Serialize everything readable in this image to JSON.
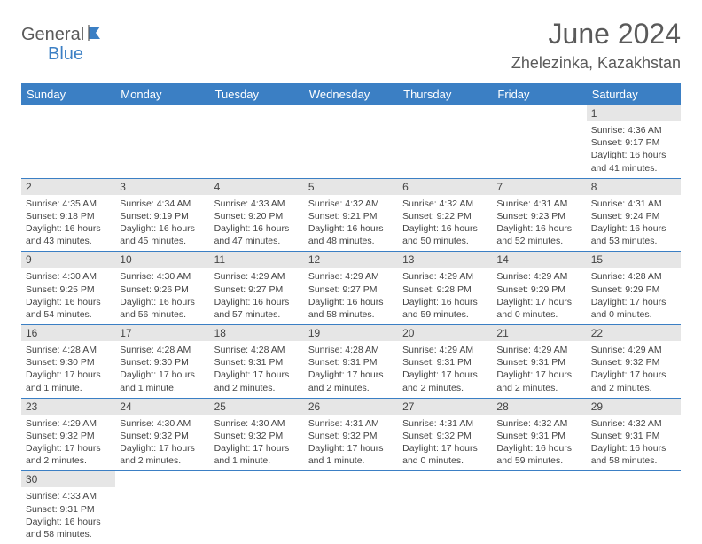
{
  "logo": {
    "part1": "General",
    "part2": "Blue"
  },
  "title": "June 2024",
  "location": "Zhelezinka, Kazakhstan",
  "colors": {
    "header_bg": "#3b7fc4",
    "header_text": "#ffffff",
    "daynum_bg": "#e6e6e6",
    "border": "#3b7fc4",
    "text": "#444444",
    "title_text": "#5a5a5a"
  },
  "weekdays": [
    "Sunday",
    "Monday",
    "Tuesday",
    "Wednesday",
    "Thursday",
    "Friday",
    "Saturday"
  ],
  "weeks": [
    [
      null,
      null,
      null,
      null,
      null,
      null,
      {
        "n": "1",
        "sr": "4:36 AM",
        "ss": "9:17 PM",
        "dl": "16 hours and 41 minutes."
      }
    ],
    [
      {
        "n": "2",
        "sr": "4:35 AM",
        "ss": "9:18 PM",
        "dl": "16 hours and 43 minutes."
      },
      {
        "n": "3",
        "sr": "4:34 AM",
        "ss": "9:19 PM",
        "dl": "16 hours and 45 minutes."
      },
      {
        "n": "4",
        "sr": "4:33 AM",
        "ss": "9:20 PM",
        "dl": "16 hours and 47 minutes."
      },
      {
        "n": "5",
        "sr": "4:32 AM",
        "ss": "9:21 PM",
        "dl": "16 hours and 48 minutes."
      },
      {
        "n": "6",
        "sr": "4:32 AM",
        "ss": "9:22 PM",
        "dl": "16 hours and 50 minutes."
      },
      {
        "n": "7",
        "sr": "4:31 AM",
        "ss": "9:23 PM",
        "dl": "16 hours and 52 minutes."
      },
      {
        "n": "8",
        "sr": "4:31 AM",
        "ss": "9:24 PM",
        "dl": "16 hours and 53 minutes."
      }
    ],
    [
      {
        "n": "9",
        "sr": "4:30 AM",
        "ss": "9:25 PM",
        "dl": "16 hours and 54 minutes."
      },
      {
        "n": "10",
        "sr": "4:30 AM",
        "ss": "9:26 PM",
        "dl": "16 hours and 56 minutes."
      },
      {
        "n": "11",
        "sr": "4:29 AM",
        "ss": "9:27 PM",
        "dl": "16 hours and 57 minutes."
      },
      {
        "n": "12",
        "sr": "4:29 AM",
        "ss": "9:27 PM",
        "dl": "16 hours and 58 minutes."
      },
      {
        "n": "13",
        "sr": "4:29 AM",
        "ss": "9:28 PM",
        "dl": "16 hours and 59 minutes."
      },
      {
        "n": "14",
        "sr": "4:29 AM",
        "ss": "9:29 PM",
        "dl": "17 hours and 0 minutes."
      },
      {
        "n": "15",
        "sr": "4:28 AM",
        "ss": "9:29 PM",
        "dl": "17 hours and 0 minutes."
      }
    ],
    [
      {
        "n": "16",
        "sr": "4:28 AM",
        "ss": "9:30 PM",
        "dl": "17 hours and 1 minute."
      },
      {
        "n": "17",
        "sr": "4:28 AM",
        "ss": "9:30 PM",
        "dl": "17 hours and 1 minute."
      },
      {
        "n": "18",
        "sr": "4:28 AM",
        "ss": "9:31 PM",
        "dl": "17 hours and 2 minutes."
      },
      {
        "n": "19",
        "sr": "4:28 AM",
        "ss": "9:31 PM",
        "dl": "17 hours and 2 minutes."
      },
      {
        "n": "20",
        "sr": "4:29 AM",
        "ss": "9:31 PM",
        "dl": "17 hours and 2 minutes."
      },
      {
        "n": "21",
        "sr": "4:29 AM",
        "ss": "9:31 PM",
        "dl": "17 hours and 2 minutes."
      },
      {
        "n": "22",
        "sr": "4:29 AM",
        "ss": "9:32 PM",
        "dl": "17 hours and 2 minutes."
      }
    ],
    [
      {
        "n": "23",
        "sr": "4:29 AM",
        "ss": "9:32 PM",
        "dl": "17 hours and 2 minutes."
      },
      {
        "n": "24",
        "sr": "4:30 AM",
        "ss": "9:32 PM",
        "dl": "17 hours and 2 minutes."
      },
      {
        "n": "25",
        "sr": "4:30 AM",
        "ss": "9:32 PM",
        "dl": "17 hours and 1 minute."
      },
      {
        "n": "26",
        "sr": "4:31 AM",
        "ss": "9:32 PM",
        "dl": "17 hours and 1 minute."
      },
      {
        "n": "27",
        "sr": "4:31 AM",
        "ss": "9:32 PM",
        "dl": "17 hours and 0 minutes."
      },
      {
        "n": "28",
        "sr": "4:32 AM",
        "ss": "9:31 PM",
        "dl": "16 hours and 59 minutes."
      },
      {
        "n": "29",
        "sr": "4:32 AM",
        "ss": "9:31 PM",
        "dl": "16 hours and 58 minutes."
      }
    ],
    [
      {
        "n": "30",
        "sr": "4:33 AM",
        "ss": "9:31 PM",
        "dl": "16 hours and 58 minutes."
      },
      null,
      null,
      null,
      null,
      null,
      null
    ]
  ],
  "labels": {
    "sunrise": "Sunrise:",
    "sunset": "Sunset:",
    "daylight": "Daylight:"
  }
}
